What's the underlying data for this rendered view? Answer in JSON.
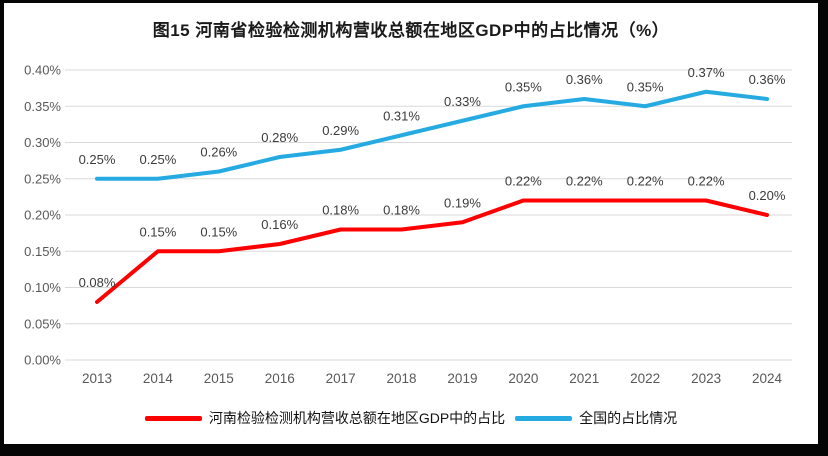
{
  "title": "图15  河南省检验检测机构营收总额在地区GDP中的占比情况（%）",
  "chart_data": {
    "type": "line",
    "x": [
      "2013",
      "2014",
      "2015",
      "2016",
      "2017",
      "2018",
      "2019",
      "2020",
      "2021",
      "2022",
      "2023",
      "2024"
    ],
    "series": [
      {
        "name": "河南检验检测机构营收总额在地区GDP中的占比",
        "color": "#fe0000",
        "values": [
          0.08,
          0.15,
          0.15,
          0.16,
          0.18,
          0.18,
          0.19,
          0.22,
          0.22,
          0.22,
          0.22,
          0.2
        ],
        "labels": [
          "0.08%",
          "0.15%",
          "0.15%",
          "0.16%",
          "0.18%",
          "0.18%",
          "0.19%",
          "0.22%",
          "0.22%",
          "0.22%",
          "0.22%",
          "0.20%"
        ]
      },
      {
        "name": "全国的占比情况",
        "color": "#25aae1",
        "values": [
          0.25,
          0.25,
          0.26,
          0.28,
          0.29,
          0.31,
          0.33,
          0.35,
          0.36,
          0.35,
          0.37,
          0.36
        ],
        "labels": [
          "0.25%",
          "0.25%",
          "0.26%",
          "0.28%",
          "0.29%",
          "0.31%",
          "0.33%",
          "0.35%",
          "0.36%",
          "0.35%",
          "0.37%",
          "0.36%"
        ]
      }
    ],
    "ylim": [
      0.0,
      0.4
    ],
    "ytick_step": 0.05,
    "yticks": [
      "0.00%",
      "0.05%",
      "0.10%",
      "0.15%",
      "0.20%",
      "0.25%",
      "0.30%",
      "0.35%",
      "0.40%"
    ],
    "grid": "horizontal",
    "data_labels": true,
    "legend_position": "bottom"
  },
  "style_colors": {
    "grid": "#d9d9d9",
    "axis_tick_text": "#595959",
    "data_label_text": "#3b3b3b",
    "frame_border": "#050505"
  }
}
